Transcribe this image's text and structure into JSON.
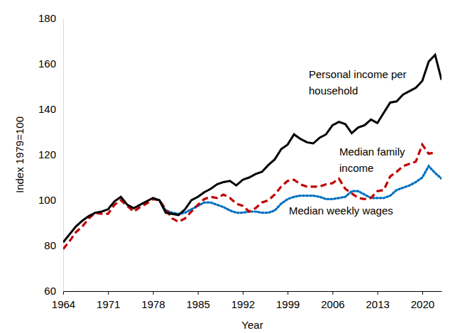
{
  "chart_data": {
    "type": "line",
    "x_label": "Year",
    "y_label": "Index 1979=100",
    "x": [
      1964,
      1965,
      1966,
      1967,
      1968,
      1969,
      1970,
      1971,
      1972,
      1973,
      1974,
      1975,
      1976,
      1977,
      1978,
      1979,
      1980,
      1981,
      1982,
      1983,
      1984,
      1985,
      1986,
      1987,
      1988,
      1989,
      1990,
      1991,
      1992,
      1993,
      1994,
      1995,
      1996,
      1997,
      1998,
      1999,
      2000,
      2001,
      2002,
      2003,
      2004,
      2005,
      2006,
      2007,
      2008,
      2009,
      2010,
      2011,
      2012,
      2013,
      2014,
      2015,
      2016,
      2017,
      2018,
      2019,
      2020,
      2021,
      2022,
      2023
    ],
    "xlim": [
      1964,
      2023
    ],
    "xticks": [
      1964,
      1971,
      1978,
      1985,
      1992,
      1999,
      2006,
      2013,
      2020
    ],
    "ylim": [
      60,
      180
    ],
    "yticks": [
      60,
      80,
      100,
      120,
      140,
      160,
      180
    ],
    "grid": false,
    "series": [
      {
        "name": "Personal income per household",
        "color": "#000000",
        "line_style": "solid",
        "values": [
          81.5,
          85,
          88.5,
          91,
          93,
          94.5,
          95,
          96,
          99.5,
          101.5,
          98,
          96.5,
          98,
          99.5,
          101,
          100,
          94.5,
          94,
          93.5,
          96,
          100,
          101.5,
          103.5,
          105,
          107,
          108,
          108.5,
          106.5,
          109,
          110,
          111.5,
          112.5,
          115.5,
          118,
          122.5,
          124.5,
          129,
          127,
          125.5,
          125,
          127.5,
          129,
          133,
          134.5,
          133.5,
          129.5,
          132,
          133,
          135.5,
          134,
          138.5,
          143,
          143.5,
          146.5,
          148,
          149.5,
          152.5,
          161,
          164,
          153
        ]
      },
      {
        "name": "Median family income",
        "color": "#c00000",
        "line_style": "dashed",
        "values": [
          78.5,
          82,
          86,
          88.5,
          92,
          94.5,
          94,
          94,
          98,
          100,
          97.5,
          95,
          97,
          98.5,
          100.5,
          100,
          96,
          92,
          90.5,
          92,
          95,
          98,
          100.5,
          101.5,
          101,
          102.5,
          101,
          98.5,
          97.5,
          95,
          96.5,
          99,
          100,
          102.5,
          106,
          108.5,
          109,
          107,
          106,
          106,
          106,
          107,
          107.5,
          109.5,
          105,
          103,
          101,
          100.5,
          101,
          104,
          104.5,
          110.5,
          112.5,
          115,
          116,
          117,
          124.5,
          120.5,
          121,
          null
        ]
      },
      {
        "name": "Median weekly wages",
        "color": "#0070c0",
        "line_style": "dotted",
        "values": [
          null,
          null,
          null,
          null,
          null,
          null,
          null,
          null,
          null,
          null,
          null,
          null,
          null,
          null,
          null,
          100,
          95.5,
          94.5,
          94,
          94.5,
          96,
          97.5,
          99,
          99,
          98,
          97,
          95.5,
          94.5,
          94.5,
          95,
          95,
          94.5,
          94.5,
          95.5,
          98.5,
          100.5,
          101.5,
          102,
          102,
          102,
          101.5,
          100.5,
          100.5,
          101,
          101.5,
          104,
          104,
          102.5,
          101,
          101,
          101,
          102,
          104.5,
          105.5,
          106.5,
          108,
          110,
          115,
          112,
          109.5
        ]
      }
    ]
  }
}
